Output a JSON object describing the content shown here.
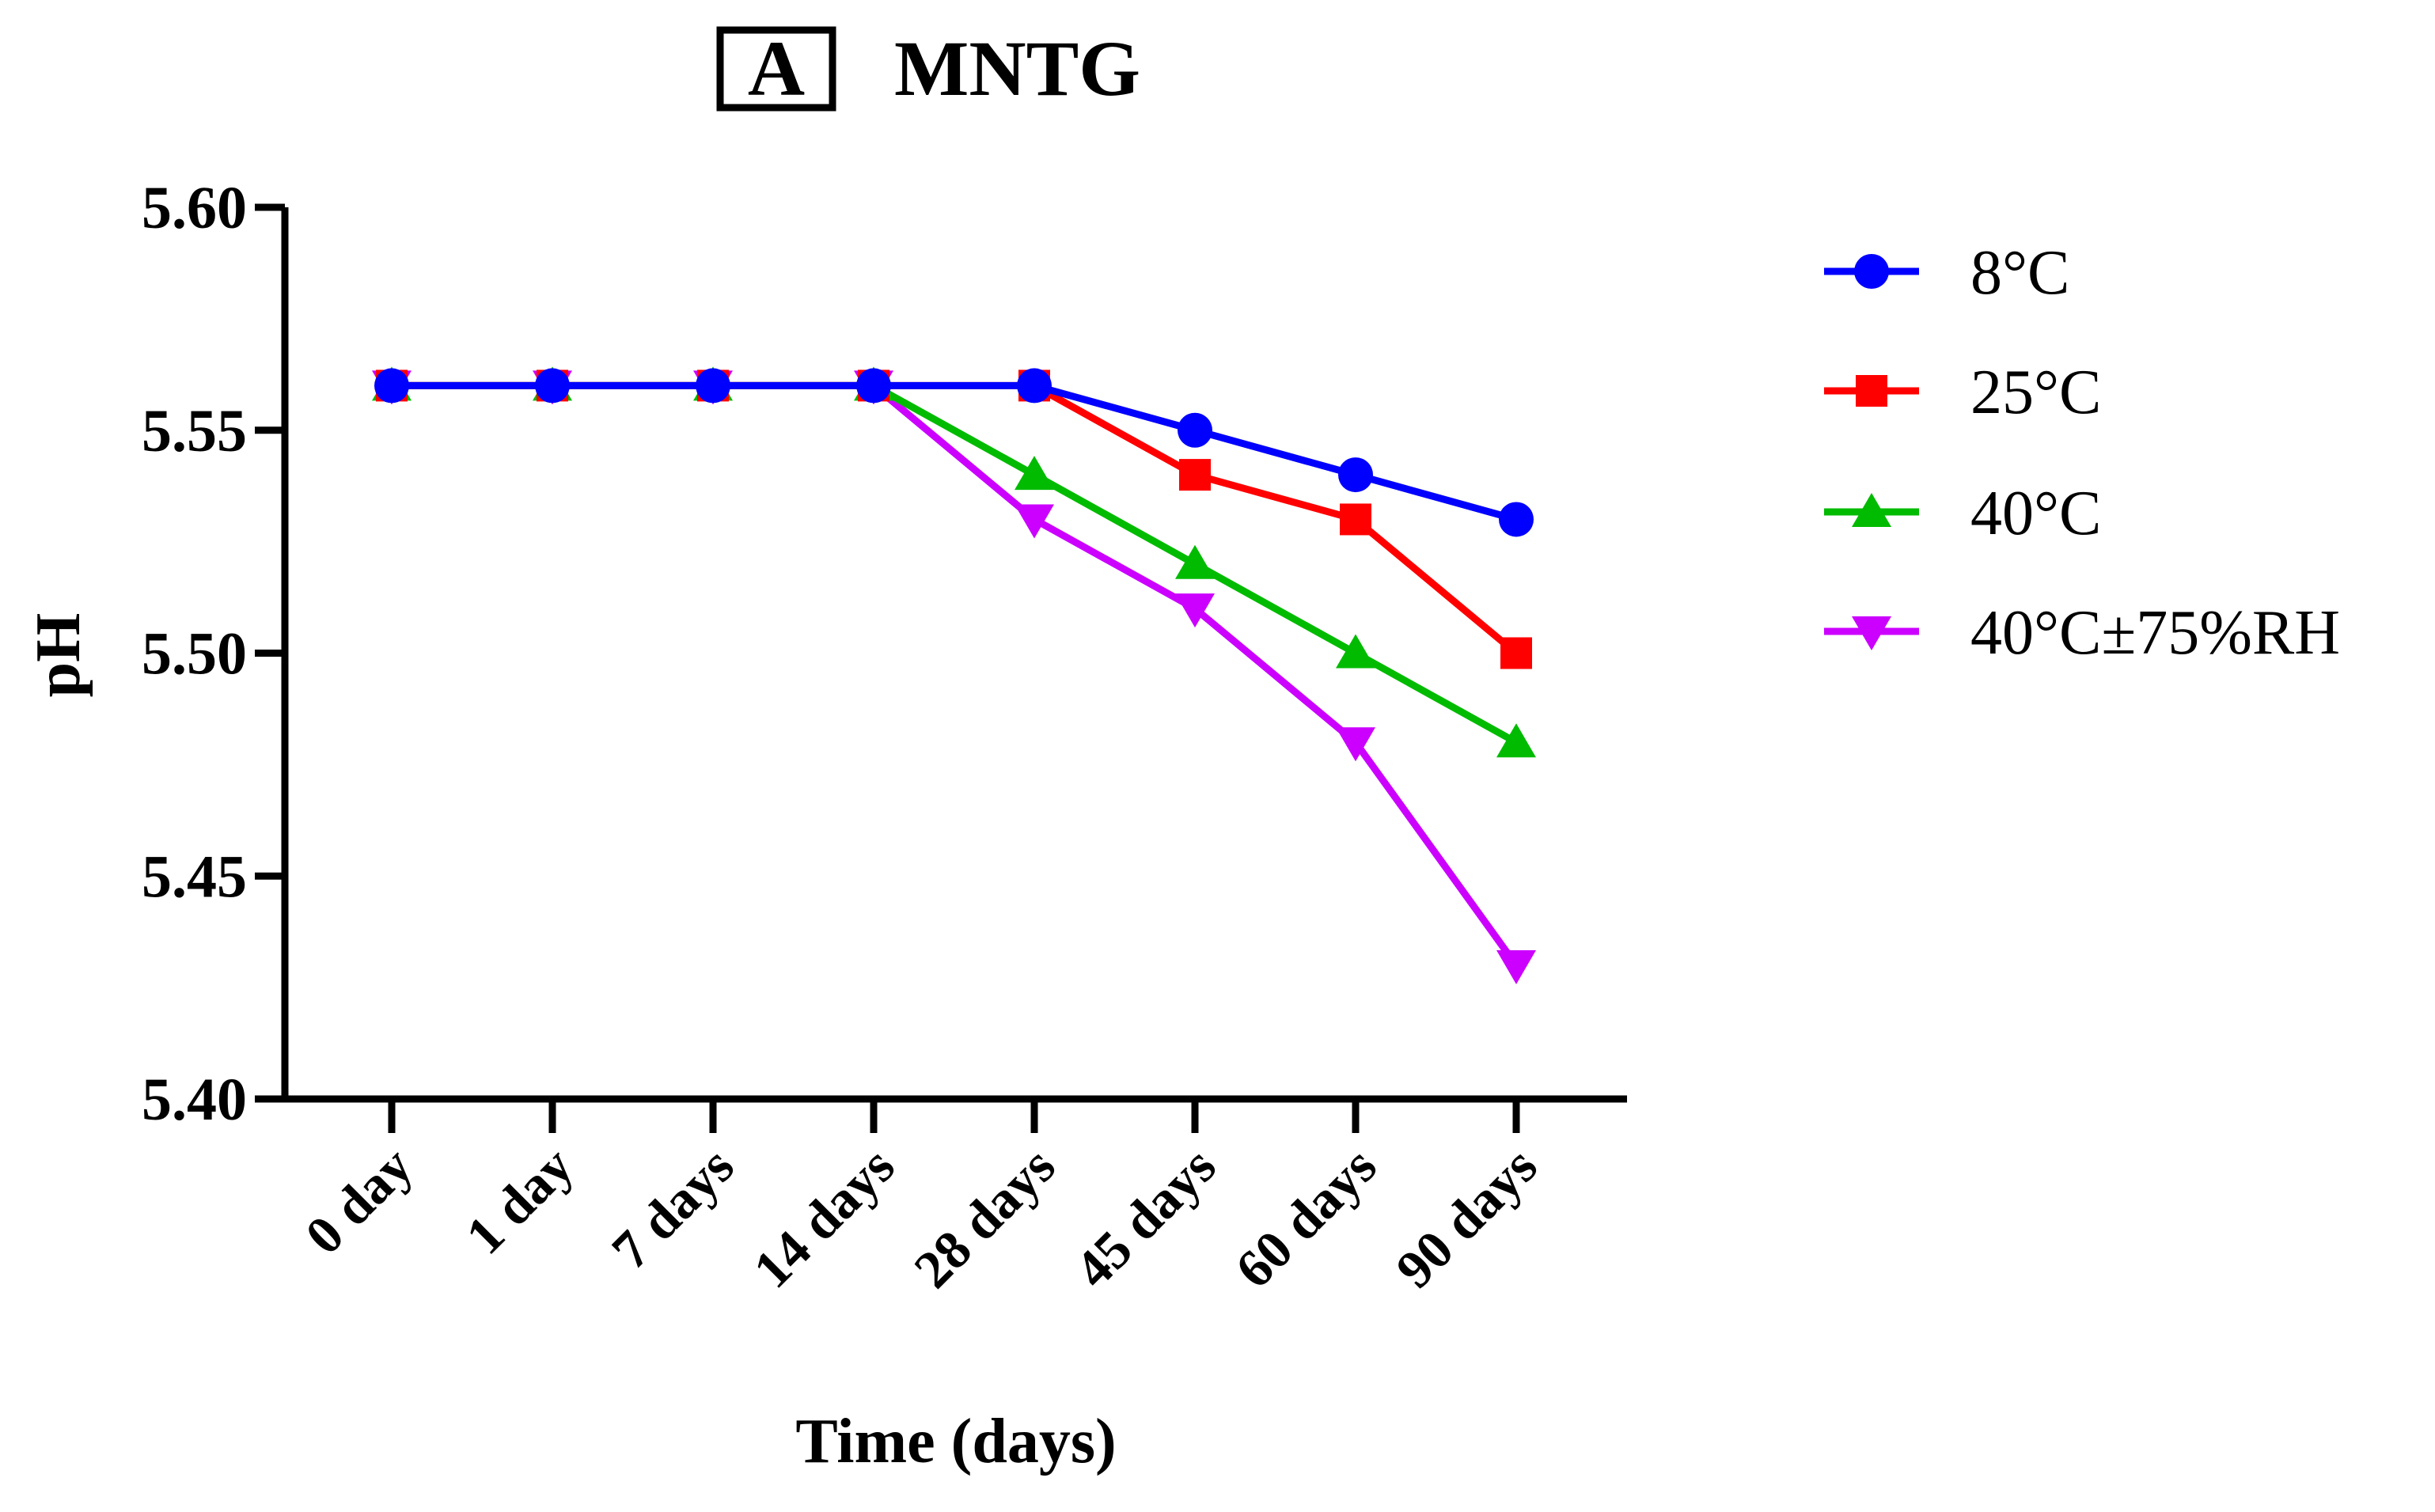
{
  "chart_data": {
    "type": "line",
    "panel_label": "A",
    "title": "MNTG",
    "xlabel": "Time (days)",
    "ylabel": "pH",
    "ylim": [
      5.4,
      5.6
    ],
    "yticks": [
      "5.40",
      "5.45",
      "5.50",
      "5.55",
      "5.60"
    ],
    "categories": [
      "0 day",
      "1 day",
      "7 days",
      "14 days",
      "28 days",
      "45 days",
      "60 days",
      "90 days"
    ],
    "grid": false,
    "legend_position": "right",
    "series": [
      {
        "name": "8°C",
        "color": "#0000ff",
        "marker": "circle",
        "values": [
          5.56,
          5.56,
          5.56,
          5.56,
          5.56,
          5.55,
          5.54,
          5.53
        ]
      },
      {
        "name": "25°C",
        "color": "#ff0000",
        "marker": "square",
        "values": [
          5.56,
          5.56,
          5.56,
          5.56,
          5.56,
          5.54,
          5.53,
          5.5
        ]
      },
      {
        "name": "40°C",
        "color": "#00bb00",
        "marker": "triangle-up",
        "values": [
          5.56,
          5.56,
          5.56,
          5.56,
          5.54,
          5.52,
          5.5,
          5.48
        ]
      },
      {
        "name": "40°C±75%RH",
        "color": "#cc00ff",
        "marker": "triangle-down",
        "values": [
          5.56,
          5.56,
          5.56,
          5.56,
          5.53,
          5.51,
          5.48,
          5.43
        ]
      }
    ]
  }
}
